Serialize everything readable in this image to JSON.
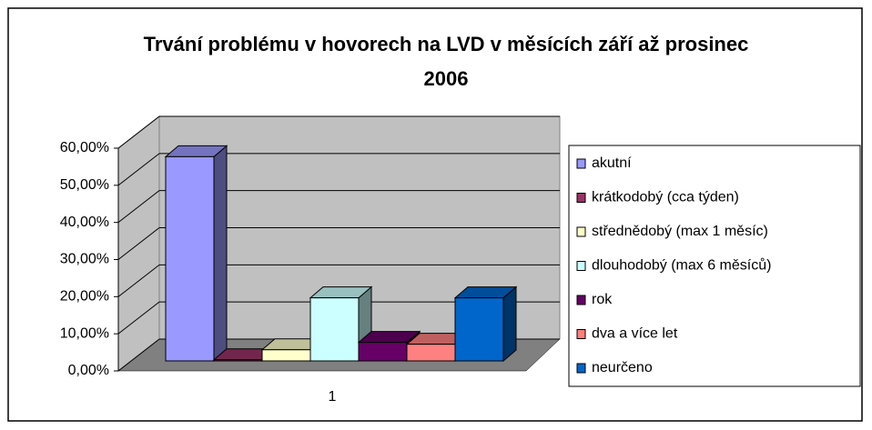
{
  "chart_data": {
    "type": "bar3d",
    "title": "Trvání problému v hovorech na LVD v měsících září až prosinec 2006",
    "categories": [
      "1"
    ],
    "series": [
      {
        "name": "akutní",
        "color": "#9999ff",
        "values": [
          55
        ]
      },
      {
        "name": "krátkodobý (cca týden)",
        "color": "#993366",
        "values": [
          0.3
        ]
      },
      {
        "name": "střednědobý (max 1 měsíc)",
        "color": "#ffffcc",
        "values": [
          3
        ]
      },
      {
        "name": "dlouhodobý (max 6 měsíců)",
        "color": "#ccffff",
        "values": [
          17
        ]
      },
      {
        "name": "rok",
        "color": "#660066",
        "values": [
          5
        ]
      },
      {
        "name": "dva a více let",
        "color": "#ff8080",
        "values": [
          4.5
        ]
      },
      {
        "name": "neurčeno",
        "color": "#0066cc",
        "values": [
          17
        ]
      }
    ],
    "ylim": [
      0,
      60
    ],
    "yticks": [
      {
        "value": 0,
        "label": "0,00%"
      },
      {
        "value": 10,
        "label": "10,00%"
      },
      {
        "value": 20,
        "label": "20,00%"
      },
      {
        "value": 30,
        "label": "30,00%"
      },
      {
        "value": 40,
        "label": "40,00%"
      },
      {
        "value": 50,
        "label": "50,00%"
      },
      {
        "value": 60,
        "label": "60,00%"
      }
    ],
    "grid": true,
    "legend": "right"
  }
}
